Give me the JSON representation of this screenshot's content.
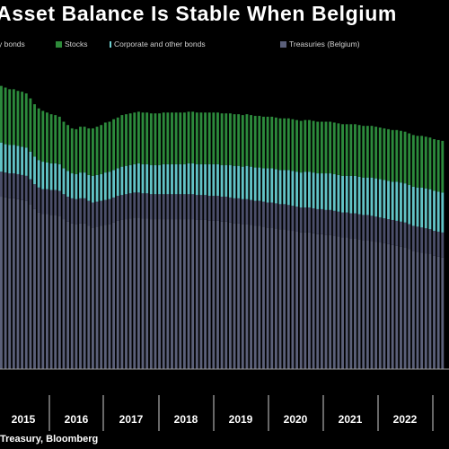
{
  "title": "Asset Balance Is Stable When Belgium",
  "source": "Treasury, Bloomberg",
  "colors": {
    "background": "#000000",
    "bonds": "#5a5f7a",
    "stocks": "#2e8b3a",
    "corporate": "#6fd0d0",
    "treasuries": "#3b3f58"
  },
  "chart_data": {
    "type": "bar",
    "stacked": true,
    "title": "Asset Balance Is Stable When Belgium",
    "xlabel": "",
    "ylabel": "",
    "grid": false,
    "legend_position": "top-left",
    "x_tick_labels": [
      "2015",
      "2016",
      "2017",
      "2018",
      "2019",
      "2020",
      "2021",
      "2022"
    ],
    "legend": [
      {
        "label": "y bonds",
        "color": "#5a5f7a"
      },
      {
        "label": "Stocks",
        "color": "#2e8b3a"
      },
      {
        "label": "Corporate and other bonds",
        "color": "#6fd0d0"
      },
      {
        "label": "Treasuries (Belgium)",
        "color": "#3b3f58"
      }
    ],
    "ylim": [
      0,
      400
    ],
    "series": [
      {
        "name": "y bonds",
        "values": [
          207,
          206,
          205,
          205,
          204,
          203,
          202,
          198,
          192,
          188,
          186,
          186,
          185,
          185,
          184,
          180,
          177,
          175,
          174,
          175,
          175,
          172,
          170,
          171,
          172,
          173,
          174,
          176,
          178,
          179,
          180,
          181,
          182,
          182,
          181,
          181,
          180,
          180,
          180,
          180,
          180,
          180,
          180,
          180,
          180,
          180,
          180,
          179,
          179,
          179,
          178,
          178,
          178,
          177,
          177,
          176,
          175,
          175,
          174,
          174,
          173,
          172,
          172,
          171,
          170,
          170,
          169,
          168,
          168,
          167,
          166,
          165,
          164,
          164,
          164,
          163,
          162,
          162,
          161,
          161,
          160,
          159,
          158,
          158,
          157,
          157,
          156,
          155,
          155,
          154,
          153,
          152,
          151,
          150,
          149,
          148,
          147,
          146,
          144,
          142,
          141,
          140,
          139,
          138,
          136,
          135,
          134
        ]
      },
      {
        "name": "Treasuries (Belgium)",
        "values": [
          30,
          30,
          30,
          30,
          30,
          30,
          30,
          30,
          30,
          30,
          30,
          30,
          30,
          30,
          30,
          30,
          30,
          30,
          30,
          30,
          30,
          30,
          30,
          30,
          30,
          30,
          30,
          30,
          30,
          30,
          30,
          30,
          30,
          30,
          30,
          30,
          30,
          30,
          30,
          30,
          30,
          30,
          30,
          30,
          30,
          30,
          30,
          30,
          30,
          30,
          30,
          30,
          30,
          30,
          30,
          30,
          30,
          30,
          30,
          30,
          30,
          30,
          30,
          30,
          30,
          30,
          30,
          30,
          30,
          30,
          30,
          30,
          30,
          30,
          30,
          30,
          30,
          30,
          30,
          30,
          30,
          30,
          30,
          30,
          30,
          30,
          30,
          30,
          30,
          30,
          30,
          30,
          30,
          30,
          30,
          30,
          30,
          30,
          30,
          30,
          30,
          30,
          30,
          30,
          30,
          30,
          30
        ]
      },
      {
        "name": "Corporate and other bonds",
        "values": [
          35,
          34,
          34,
          34,
          34,
          34,
          34,
          33,
          33,
          33,
          33,
          32,
          32,
          32,
          32,
          31,
          31,
          30,
          30,
          31,
          31,
          31,
          32,
          32,
          32,
          33,
          33,
          33,
          33,
          34,
          34,
          34,
          34,
          35,
          35,
          35,
          35,
          35,
          35,
          36,
          36,
          36,
          36,
          36,
          36,
          37,
          37,
          37,
          37,
          37,
          38,
          38,
          38,
          38,
          38,
          39,
          39,
          39,
          39,
          40,
          40,
          40,
          40,
          40,
          41,
          41,
          41,
          41,
          41,
          42,
          42,
          42,
          42,
          43,
          43,
          43,
          43,
          43,
          44,
          44,
          44,
          44,
          44,
          44,
          45,
          45,
          45,
          45,
          45,
          46,
          46,
          46,
          46,
          46,
          46,
          47,
          47,
          47,
          47,
          47,
          47,
          48,
          48,
          48,
          48,
          48,
          48
        ]
      },
      {
        "name": "Stocks",
        "values": [
          68,
          68,
          67,
          67,
          66,
          66,
          65,
          64,
          63,
          62,
          61,
          60,
          59,
          58,
          57,
          56,
          55,
          54,
          54,
          55,
          55,
          56,
          57,
          58,
          59,
          60,
          60,
          61,
          61,
          62,
          62,
          62,
          62,
          62,
          62,
          62,
          62,
          62,
          62,
          62,
          62,
          62,
          62,
          62,
          62,
          62,
          62,
          62,
          62,
          62,
          62,
          62,
          62,
          62,
          62,
          62,
          62,
          62,
          62,
          62,
          62,
          62,
          62,
          62,
          62,
          62,
          62,
          62,
          62,
          62,
          62,
          62,
          62,
          62,
          62,
          62,
          62,
          62,
          62,
          62,
          62,
          62,
          62,
          62,
          62,
          62,
          62,
          62,
          62,
          62,
          62,
          62,
          62,
          62,
          62,
          62,
          62,
          62,
          62,
          62,
          62,
          62,
          62,
          62,
          62,
          62,
          62
        ]
      }
    ]
  }
}
